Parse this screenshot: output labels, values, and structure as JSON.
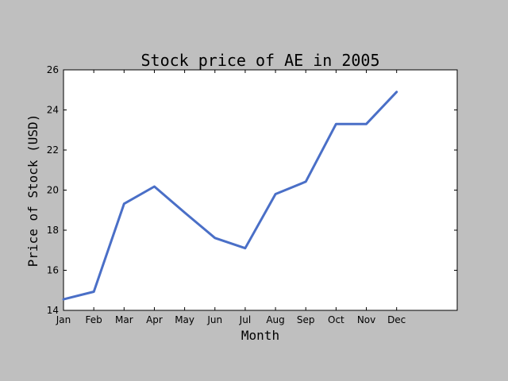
{
  "chart_data": {
    "type": "line",
    "title": "Stock price of AE in 2005",
    "xlabel": "Month",
    "ylabel": "Price of Stock (USD)",
    "categories": [
      "Jan",
      "Feb",
      "Mar",
      "Apr",
      "May",
      "Jun",
      "Jul",
      "Aug",
      "Sep",
      "Oct",
      "Nov",
      "Dec"
    ],
    "series": [
      {
        "values": [
          14.55,
          14.93,
          19.32,
          20.18,
          18.88,
          17.61,
          17.1,
          19.8,
          20.42,
          23.3,
          23.3,
          24.9
        ],
        "color": "#4a6fc7"
      }
    ],
    "ylim": [
      14,
      26
    ],
    "yticks": [
      14,
      16,
      18,
      20,
      22,
      24,
      26
    ],
    "x_slots": 13,
    "grid": false,
    "background": "#bfbfbf",
    "plot_background": "#ffffff"
  }
}
